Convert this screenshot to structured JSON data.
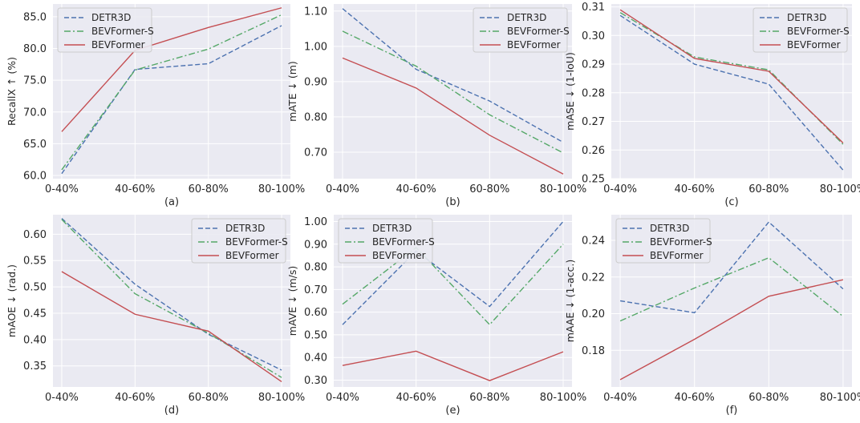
{
  "chart_data": [
    {
      "type": "line",
      "caption": "(a)",
      "ylabel": "RecallX ↑ (%)",
      "categories": [
        "0-40%",
        "40-60%",
        "60-80%",
        "80-100%"
      ],
      "ylim": [
        59.5,
        87.0
      ],
      "yticks": [
        60,
        65,
        70,
        75,
        80,
        85
      ],
      "ytick_labels": [
        "60.0",
        "65.0",
        "70.0",
        "75.0",
        "80.0",
        "85.0"
      ],
      "legend": "top-left",
      "series": [
        {
          "name": "DETR3D",
          "values": [
            60.3,
            76.7,
            77.6,
            83.6
          ]
        },
        {
          "name": "BEVFormer-S",
          "values": [
            60.9,
            76.6,
            79.9,
            85.3
          ]
        },
        {
          "name": "BEVFormer",
          "values": [
            66.9,
            79.7,
            83.3,
            86.4
          ]
        }
      ]
    },
    {
      "type": "line",
      "caption": "(b)",
      "ylabel": "mATE ↓ (m)",
      "categories": [
        "0-40%",
        "40-60%",
        "60-80%",
        "80-100%"
      ],
      "ylim": [
        0.625,
        1.12
      ],
      "yticks": [
        0.7,
        0.8,
        0.9,
        1.0,
        1.1
      ],
      "ytick_labels": [
        "0.70",
        "0.80",
        "0.90",
        "1.00",
        "1.10"
      ],
      "legend": "top-right",
      "series": [
        {
          "name": "DETR3D",
          "values": [
            1.107,
            0.935,
            0.845,
            0.728
          ]
        },
        {
          "name": "BEVFormer-S",
          "values": [
            1.043,
            0.944,
            0.806,
            0.698
          ]
        },
        {
          "name": "BEVFormer",
          "values": [
            0.967,
            0.882,
            0.748,
            0.638
          ]
        }
      ]
    },
    {
      "type": "line",
      "caption": "(c)",
      "ylabel": "mASE ↓ (1-IoU)",
      "categories": [
        "0-40%",
        "40-60%",
        "60-80%",
        "80-100%"
      ],
      "ylim": [
        0.25,
        0.311
      ],
      "yticks": [
        0.25,
        0.26,
        0.27,
        0.28,
        0.29,
        0.3,
        0.31
      ],
      "ytick_labels": [
        "0.25",
        "0.26",
        "0.27",
        "0.28",
        "0.29",
        "0.30",
        "0.31"
      ],
      "legend": "top-right",
      "series": [
        {
          "name": "DETR3D",
          "values": [
            0.307,
            0.29,
            0.283,
            0.253
          ]
        },
        {
          "name": "BEVFormer-S",
          "values": [
            0.308,
            0.2925,
            0.288,
            0.262
          ]
        },
        {
          "name": "BEVFormer",
          "values": [
            0.309,
            0.292,
            0.2875,
            0.2625
          ]
        }
      ]
    },
    {
      "type": "line",
      "caption": "(d)",
      "ylabel": "mAOE ↓ (rad.)",
      "categories": [
        "0-40%",
        "40-60%",
        "60-80%",
        "80-100%"
      ],
      "ylim": [
        0.31,
        0.637
      ],
      "yticks": [
        0.35,
        0.4,
        0.45,
        0.5,
        0.55,
        0.6
      ],
      "ytick_labels": [
        "0.35",
        "0.40",
        "0.45",
        "0.50",
        "0.55",
        "0.60"
      ],
      "legend": "top-right",
      "series": [
        {
          "name": "DETR3D",
          "values": [
            0.63,
            0.505,
            0.41,
            0.342
          ]
        },
        {
          "name": "BEVFormer-S",
          "values": [
            0.628,
            0.487,
            0.412,
            0.328
          ]
        },
        {
          "name": "BEVFormer",
          "values": [
            0.529,
            0.448,
            0.416,
            0.32
          ]
        }
      ]
    },
    {
      "type": "line",
      "caption": "(e)",
      "ylabel": "mAVE ↓ (m/s)",
      "categories": [
        "0-40%",
        "40-60%",
        "60-80%",
        "80-100%"
      ],
      "ylim": [
        0.27,
        1.03
      ],
      "yticks": [
        0.3,
        0.4,
        0.5,
        0.6,
        0.7,
        0.8,
        0.9,
        1.0
      ],
      "ytick_labels": [
        "0.30",
        "0.40",
        "0.50",
        "0.60",
        "0.70",
        "0.80",
        "0.90",
        "1.00"
      ],
      "legend": "top-left",
      "series": [
        {
          "name": "DETR3D",
          "values": [
            0.545,
            0.87,
            0.625,
            1.0
          ]
        },
        {
          "name": "BEVFormer-S",
          "values": [
            0.635,
            0.885,
            0.545,
            0.9
          ]
        },
        {
          "name": "BEVFormer",
          "values": [
            0.365,
            0.428,
            0.298,
            0.425
          ]
        }
      ]
    },
    {
      "type": "line",
      "caption": "(f)",
      "ylabel": "mAAE ↓ (1-acc.)",
      "categories": [
        "0-40%",
        "40-60%",
        "60-80%",
        "80-100%"
      ],
      "ylim": [
        0.16,
        0.254
      ],
      "yticks": [
        0.18,
        0.2,
        0.22,
        0.24
      ],
      "ytick_labels": [
        "0.18",
        "0.20",
        "0.22",
        "0.24"
      ],
      "legend": "top-left",
      "series": [
        {
          "name": "DETR3D",
          "values": [
            0.207,
            0.2005,
            0.25,
            0.2135
          ]
        },
        {
          "name": "BEVFormer-S",
          "values": [
            0.196,
            0.214,
            0.2305,
            0.1985
          ]
        },
        {
          "name": "BEVFormer",
          "values": [
            0.164,
            0.186,
            0.2095,
            0.2185
          ]
        }
      ]
    }
  ],
  "series_styles": {
    "DETR3D": {
      "color": "#4c72b0",
      "dash": "dashed"
    },
    "BEVFormer-S": {
      "color": "#55a868",
      "dash": "dashdot"
    },
    "BEVFormer": {
      "color": "#c44e52",
      "dash": "solid"
    }
  }
}
